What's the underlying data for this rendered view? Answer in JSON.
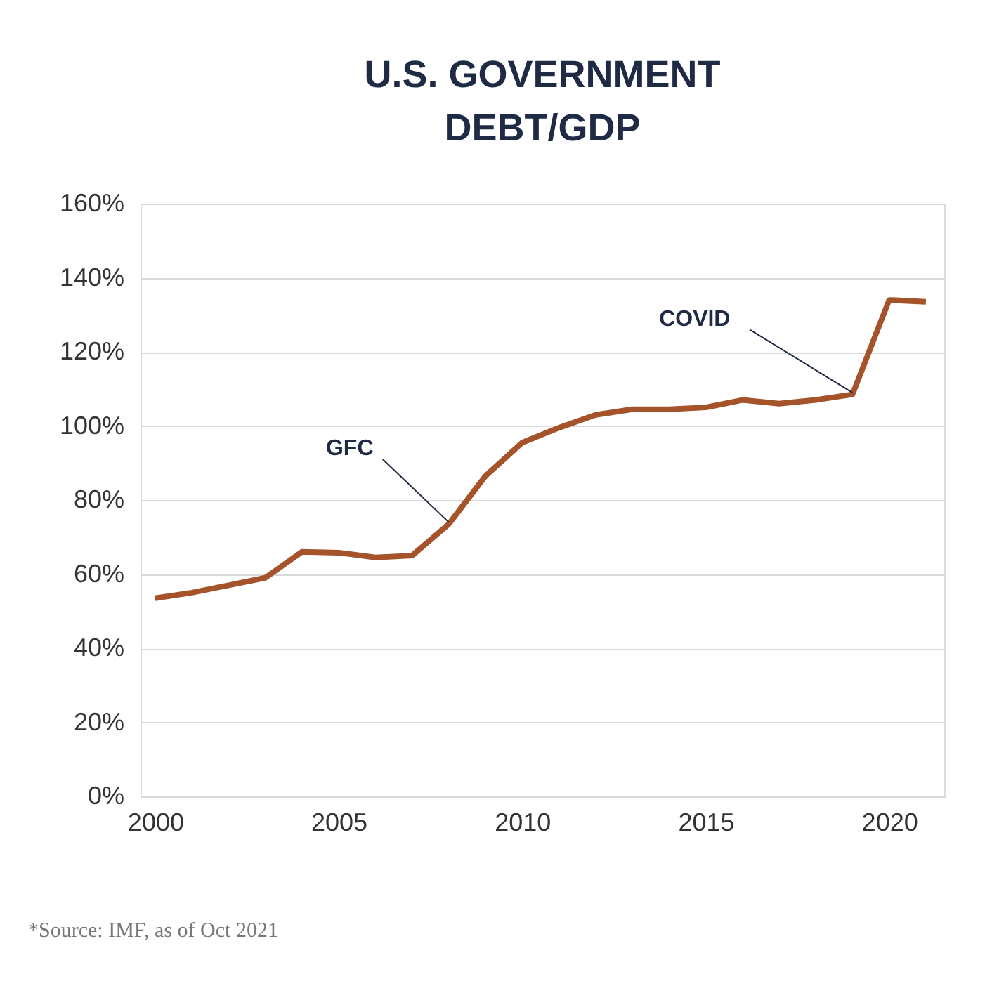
{
  "chart_data": {
    "type": "line",
    "title": [
      "U.S. GOVERNMENT",
      "DEBT/GDP"
    ],
    "x": [
      2000,
      2001,
      2002,
      2003,
      2004,
      2005,
      2006,
      2007,
      2008,
      2009,
      2010,
      2011,
      2012,
      2013,
      2014,
      2015,
      2016,
      2017,
      2018,
      2019,
      2020,
      2021
    ],
    "series": [
      {
        "color": "#a4532a",
        "values": [
          53.5,
          55,
          57,
          59,
          66,
          65.8,
          64.5,
          65,
          73.5,
          86.5,
          95.5,
          99.5,
          103,
          104.5,
          104.5,
          105,
          107,
          106,
          107,
          108.5,
          134,
          133.5
        ]
      }
    ],
    "xlim": [
      1999.6,
      2021.5
    ],
    "xticks": [
      2000,
      2005,
      2010,
      2015,
      2020
    ],
    "ylim": [
      0,
      160
    ],
    "yticks": [
      {
        "value": 0,
        "label": "0%"
      },
      {
        "value": 20,
        "label": "20%"
      },
      {
        "value": 40,
        "label": "40%"
      },
      {
        "value": 60,
        "label": "60%"
      },
      {
        "value": 80,
        "label": "80%"
      },
      {
        "value": 100,
        "label": "100%"
      },
      {
        "value": 120,
        "label": "120%"
      },
      {
        "value": 140,
        "label": "140%"
      },
      {
        "value": 160,
        "label": "160%"
      }
    ],
    "grid": "y",
    "marker": "none",
    "line_style": "solid",
    "annotations": [
      {
        "text": "GFC",
        "x": 2008,
        "y": 74
      },
      {
        "text": "COVID",
        "x": 2019,
        "y": 109
      },
      "*Source: IMF, as of Oct 2021"
    ]
  }
}
